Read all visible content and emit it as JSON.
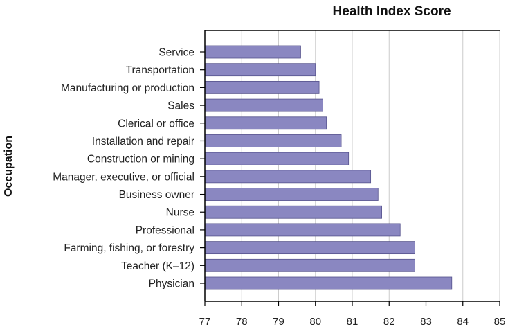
{
  "chart_data": {
    "type": "bar",
    "orientation": "horizontal",
    "title": "Health Index Score",
    "xlabel": "",
    "ylabel": "Occupation",
    "xlim": [
      77,
      85
    ],
    "xticks": [
      77,
      78,
      79,
      80,
      81,
      82,
      83,
      84,
      85
    ],
    "grid": "vertical",
    "categories": [
      "Service",
      "Transportation",
      "Manufacturing or production",
      "Sales",
      "Clerical or office",
      "Installation and repair",
      "Construction or mining",
      "Manager, executive, or official",
      "Business owner",
      "Nurse",
      "Professional",
      "Farming, fishing, or forestry",
      "Teacher (K–12)",
      "Physician"
    ],
    "values": [
      79.6,
      80.0,
      80.1,
      80.2,
      80.3,
      80.7,
      80.9,
      81.5,
      81.7,
      81.8,
      82.3,
      82.7,
      82.7,
      83.7
    ],
    "colors": {
      "bar": "#8a87c1",
      "bar_edge": "#55528c",
      "grid": "#cccccc",
      "axis": "#000000"
    }
  }
}
